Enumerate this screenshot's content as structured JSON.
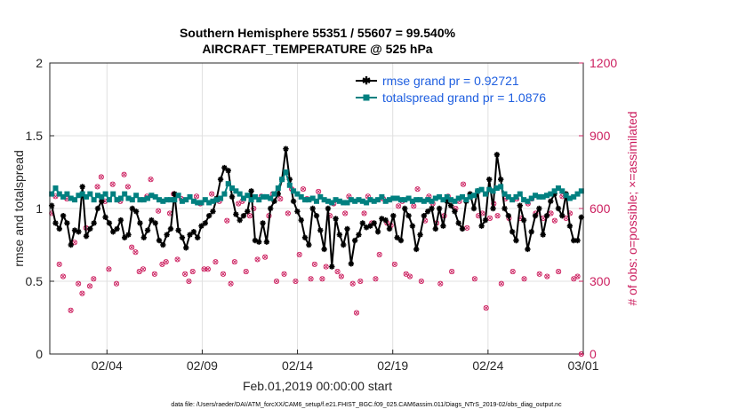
{
  "chart_data": {
    "type": "line",
    "title_line1": "Southern Hemisphere 55351 / 55607 = 99.540%",
    "title_line2": "AIRCRAFT_TEMPERATURE @ 525 hPa",
    "xlabel": "Feb.01,2019 00:00:00 start",
    "ylabel_left": "rmse and totalspread",
    "ylabel_right": "# of obs: o=possible; ×=assimilated",
    "xlim": [
      0,
      28
    ],
    "ylim_left": [
      0,
      2
    ],
    "ylim_right": [
      0,
      1200
    ],
    "x_ticks": [
      {
        "value": 3,
        "label": "02/04"
      },
      {
        "value": 8,
        "label": "02/09"
      },
      {
        "value": 13,
        "label": "02/14"
      },
      {
        "value": 18,
        "label": "02/19"
      },
      {
        "value": 23,
        "label": "02/24"
      },
      {
        "value": 28,
        "label": "03/01"
      }
    ],
    "y_ticks_left": [
      {
        "value": 0,
        "label": "0"
      },
      {
        "value": 0.5,
        "label": "0.5"
      },
      {
        "value": 1,
        "label": "1"
      },
      {
        "value": 1.5,
        "label": "1.5"
      },
      {
        "value": 2,
        "label": "2"
      }
    ],
    "y_ticks_right": [
      {
        "value": 0,
        "label": "0"
      },
      {
        "value": 300,
        "label": "300"
      },
      {
        "value": 600,
        "label": "600"
      },
      {
        "value": 900,
        "label": "900"
      },
      {
        "value": 1200,
        "label": "1200"
      }
    ],
    "series": [
      {
        "name": "rmse grand pr = 0.92721",
        "axis": "left",
        "color": "#000000",
        "marker": "asterisk",
        "values": [
          1.02,
          0.9,
          0.86,
          0.95,
          0.9,
          0.75,
          0.85,
          0.84,
          1.15,
          0.81,
          0.86,
          0.9,
          1.0,
          1.05,
          0.94,
          0.9,
          0.84,
          0.86,
          0.92,
          0.8,
          0.82,
          1.0,
          0.98,
          0.9,
          0.8,
          0.85,
          0.92,
          0.9,
          0.78,
          0.75,
          0.82,
          0.86,
          1.1,
          0.85,
          0.8,
          0.73,
          0.82,
          0.84,
          0.8,
          0.88,
          0.9,
          0.95,
          0.98,
          1.07,
          1.2,
          1.28,
          1.26,
          1.08,
          0.96,
          0.92,
          0.95,
          0.98,
          1.12,
          0.78,
          0.77,
          0.9,
          0.77,
          1.0,
          1.05,
          1.1,
          1.2,
          1.41,
          1.2,
          1.05,
          0.98,
          0.92,
          0.8,
          0.75,
          1.0,
          0.95,
          0.85,
          0.72,
          1.0,
          0.6,
          0.93,
          0.82,
          0.75,
          0.86,
          0.62,
          0.78,
          0.82,
          0.9,
          0.87,
          0.88,
          0.9,
          0.84,
          0.93,
          0.92,
          0.86,
          0.95,
          0.8,
          0.78,
          1.0,
          0.95,
          0.88,
          0.72,
          0.82,
          0.95,
          0.98,
          1.0,
          0.86,
          1.0,
          0.88,
          1.05,
          1.02,
          0.98,
          0.9,
          0.86,
          1.05,
          1.1,
          1.0,
          1.12,
          0.88,
          0.92,
          1.2,
          1.0,
          1.37,
          1.2,
          1.0,
          0.95,
          0.84,
          0.78,
          1.02,
          0.92,
          0.72,
          0.84,
          0.95,
          1.0,
          0.82,
          0.95,
          1.05,
          1.1,
          1.0,
          0.95,
          1.1,
          0.88,
          0.78,
          0.78,
          0.94
        ]
      },
      {
        "name": "totalspread grand pr = 1.0876",
        "axis": "left",
        "color": "#008080",
        "marker": "square",
        "values": [
          1.1,
          1.14,
          1.1,
          1.08,
          1.1,
          1.07,
          1.06,
          1.09,
          1.1,
          1.08,
          1.1,
          1.06,
          1.09,
          1.08,
          1.1,
          1.06,
          1.1,
          1.06,
          1.07,
          1.1,
          1.07,
          1.06,
          1.09,
          1.06,
          1.06,
          1.07,
          1.09,
          1.08,
          1.06,
          1.05,
          1.06,
          1.06,
          1.06,
          1.09,
          1.05,
          1.06,
          1.08,
          1.05,
          1.04,
          1.04,
          1.06,
          1.04,
          1.05,
          1.06,
          1.07,
          1.1,
          1.17,
          1.14,
          1.12,
          1.1,
          1.07,
          1.09,
          1.06,
          1.08,
          1.06,
          1.08,
          1.08,
          1.07,
          1.1,
          1.14,
          1.2,
          1.25,
          1.16,
          1.12,
          1.1,
          1.08,
          1.06,
          1.06,
          1.07,
          1.05,
          1.08,
          1.06,
          1.05,
          1.04,
          1.06,
          1.05,
          1.04,
          1.04,
          1.06,
          1.05,
          1.06,
          1.05,
          1.04,
          1.06,
          1.05,
          1.06,
          1.08,
          1.05,
          1.06,
          1.07,
          1.07,
          1.06,
          1.06,
          1.07,
          1.05,
          1.06,
          1.06,
          1.05,
          1.06,
          1.05,
          1.07,
          1.08,
          1.06,
          1.08,
          1.06,
          1.05,
          1.07,
          1.08,
          1.06,
          1.08,
          1.09,
          1.12,
          1.13,
          1.1,
          1.13,
          1.12,
          1.14,
          1.15,
          1.1,
          1.08,
          1.06,
          1.08,
          1.1,
          1.06,
          1.05,
          1.07,
          1.09,
          1.08,
          1.08,
          1.09,
          1.1,
          1.12,
          1.14,
          1.12,
          1.09,
          1.07,
          1.08,
          1.1,
          1.12
        ]
      }
    ],
    "obs_counts": {
      "axis": "right",
      "color": "#cc1f5f",
      "values": [
        580,
        650,
        370,
        320,
        640,
        180,
        460,
        290,
        250,
        520,
        280,
        310,
        690,
        730,
        630,
        350,
        700,
        290,
        630,
        740,
        690,
        440,
        420,
        340,
        350,
        650,
        720,
        330,
        590,
        370,
        380,
        580,
        660,
        390,
        640,
        330,
        300,
        340,
        650,
        620,
        350,
        350,
        660,
        380,
        630,
        330,
        550,
        290,
        380,
        620,
        630,
        340,
        570,
        600,
        390,
        650,
        400,
        570,
        660,
        300,
        640,
        330,
        580,
        680,
        300,
        410,
        680,
        640,
        310,
        370,
        670,
        310,
        360,
        570,
        620,
        340,
        320,
        580,
        650,
        290,
        170,
        300,
        580,
        650,
        540,
        310,
        410,
        640,
        540,
        530,
        370,
        610,
        630,
        330,
        320,
        610,
        680,
        300,
        550,
        650,
        620,
        540,
        290,
        570,
        650,
        340,
        600,
        630,
        700,
        520,
        650,
        310,
        570,
        580,
        190,
        560,
        620,
        570,
        290,
        640,
        560,
        340,
        640,
        560,
        310,
        620,
        640,
        580,
        330,
        560,
        320,
        580,
        550,
        340,
        650,
        560,
        580,
        310,
        320,
        0
      ]
    },
    "legend_position": "top-right",
    "grid": true
  },
  "footer": {
    "file_text": "data file: /Users/raeder/DAI/ATM_forcXX/CAM6_setup/f.e21.FHIST_BGC.f09_025.CAM6assim.011/Diags_NTrS_2019-02/obs_diag_output.nc"
  }
}
